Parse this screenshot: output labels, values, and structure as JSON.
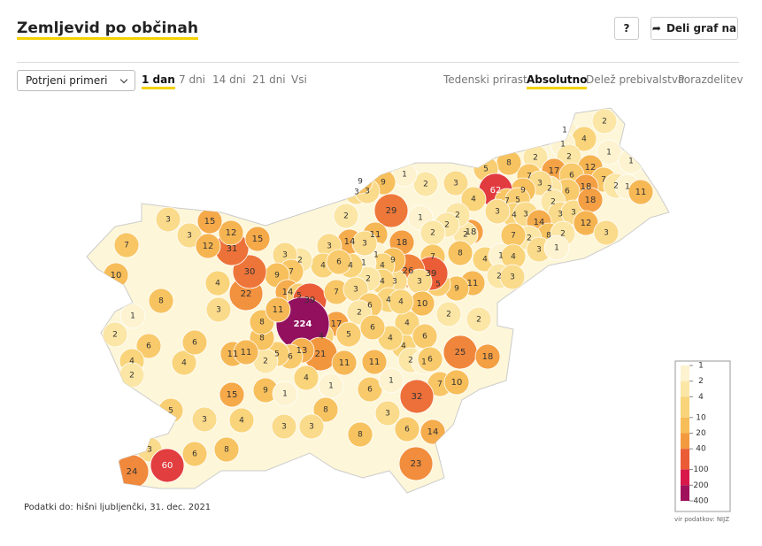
{
  "header": {
    "title": "Zemljevid po občinah",
    "help": "?",
    "share": "Deli graf na"
  },
  "controls": {
    "select": "Potrjeni primeri",
    "periods": [
      "1 dan",
      "7 dni",
      "14 dni",
      "21 dni",
      "Vsi"
    ],
    "active_period": 0,
    "modes": [
      "Tedenski prirast",
      "Absolutno",
      "Delež prebivalstva",
      "Porazdelitev"
    ],
    "active_mode": 1
  },
  "map": {
    "values": [
      2,
      1,
      4,
      1,
      1,
      1,
      2,
      2,
      8,
      5,
      7,
      17,
      12,
      6,
      7,
      2,
      1,
      11,
      18,
      6,
      2,
      3,
      9,
      62,
      7,
      5,
      4,
      3,
      3,
      2,
      3,
      3,
      18,
      12,
      3,
      14,
      8,
      2,
      2,
      3,
      1,
      7,
      18,
      3,
      4,
      2,
      2,
      2,
      1,
      2,
      2,
      1,
      29,
      9,
      3,
      3,
      9,
      2,
      18,
      7,
      8,
      4,
      1,
      4,
      2,
      3,
      11,
      9,
      5,
      39,
      26,
      3,
      3,
      11,
      1,
      9,
      4,
      1,
      4,
      2,
      4,
      14,
      3,
      3,
      4,
      6,
      2,
      3,
      7,
      9,
      14,
      5,
      39,
      7,
      3,
      4,
      6,
      2,
      17,
      5,
      4,
      224,
      21,
      13,
      6,
      5,
      2,
      8,
      8,
      11,
      22,
      30,
      31,
      15,
      12,
      15,
      3,
      12,
      4,
      3,
      3,
      7,
      10,
      8,
      1,
      2,
      6,
      4,
      6,
      4,
      2,
      11,
      11,
      15,
      9,
      4,
      3,
      5,
      6,
      3,
      60,
      24,
      8,
      1,
      4,
      1,
      8,
      3,
      3,
      8,
      11,
      11,
      6,
      1,
      4,
      4,
      4,
      6,
      6,
      10,
      4,
      2,
      1,
      6,
      7,
      10,
      25,
      18,
      32,
      3,
      6,
      14,
      23,
      2,
      2
    ],
    "legend": {
      "ticks": [
        1,
        2,
        4,
        10,
        20,
        40,
        100,
        200,
        400
      ],
      "colors": [
        "#fdf3d0",
        "#fbe6a6",
        "#f9d47a",
        "#f7bd58",
        "#f39a3f",
        "#ea5b36",
        "#d8184a",
        "#a0115c",
        "#4a0a66"
      ]
    },
    "source": "vir podatkov: NIJZ"
  },
  "footnote": "Podatki do: hišni ljubljenčki, 31. dec. 2021"
}
